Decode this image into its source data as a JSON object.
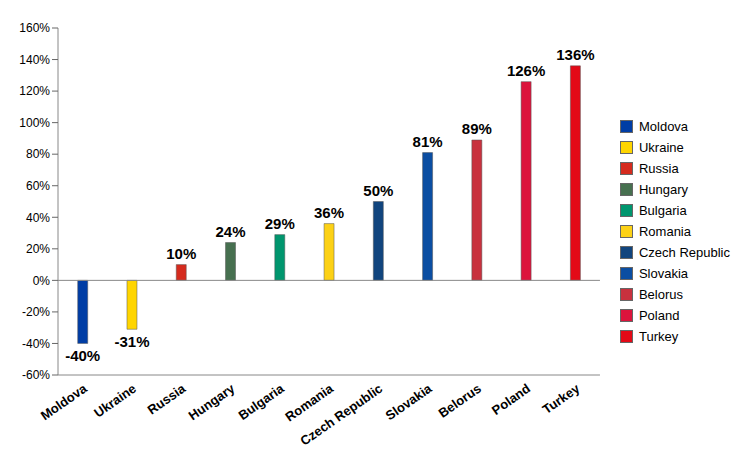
{
  "chart_data": {
    "type": "bar",
    "categories": [
      "Moldova",
      "Ukraine",
      "Russia",
      "Hungary",
      "Bulgaria",
      "Romania",
      "Czech Republic",
      "Slovakia",
      "Belorus",
      "Poland",
      "Turkey"
    ],
    "values": [
      -40,
      -31,
      10,
      24,
      29,
      36,
      50,
      81,
      89,
      126,
      136
    ],
    "value_labels": [
      "-40%",
      "-31%",
      "10%",
      "24%",
      "29%",
      "36%",
      "50%",
      "81%",
      "89%",
      "126%",
      "136%"
    ],
    "colors": [
      "#003DA5",
      "#FFD500",
      "#D52B1E",
      "#477050",
      "#00966E",
      "#FCD116",
      "#11457E",
      "#0B4EA2",
      "#C8313E",
      "#DC143C",
      "#E30A17"
    ],
    "ylim": [
      -60,
      160
    ],
    "yticks": [
      {
        "value": -60,
        "label": "-60%"
      },
      {
        "value": -40,
        "label": "-40%"
      },
      {
        "value": -20,
        "label": "-20%"
      },
      {
        "value": 0,
        "label": "0%"
      },
      {
        "value": 20,
        "label": "20%"
      },
      {
        "value": 40,
        "label": "40%"
      },
      {
        "value": 60,
        "label": "60%"
      },
      {
        "value": 80,
        "label": "80%"
      },
      {
        "value": 100,
        "label": "100%"
      },
      {
        "value": 120,
        "label": "120%"
      },
      {
        "value": 140,
        "label": "140%"
      },
      {
        "value": 160,
        "label": "160%"
      }
    ],
    "data_labels": true,
    "legend": "right",
    "grid": false
  }
}
